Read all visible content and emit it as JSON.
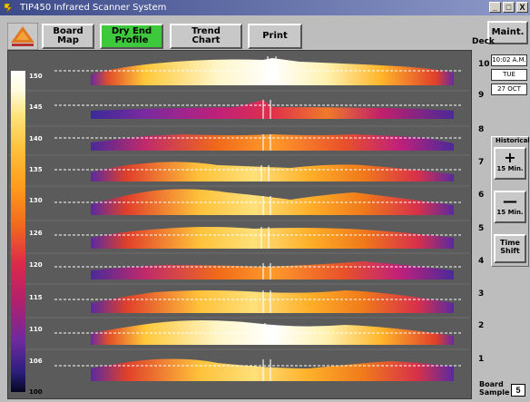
{
  "window": {
    "title": "TIP450 Infrared Scanner System",
    "controls": [
      "_",
      "□",
      "X"
    ]
  },
  "toolbar": {
    "board_map": "Board Map",
    "dry_end_profile": [
      "Dry End",
      "Profile"
    ],
    "trend_chart": [
      "Trend",
      "Chart"
    ],
    "print": "Print",
    "maint": "Maint."
  },
  "deck_header": "Deck",
  "colorbar_ticks": [
    "150",
    "145",
    "140",
    "135",
    "130",
    "126",
    "120",
    "115",
    "110",
    "106",
    "100"
  ],
  "decks": [
    "10",
    "9",
    "8",
    "7",
    "6",
    "5",
    "4",
    "3",
    "2",
    "1"
  ],
  "status": {
    "time": "10:02 A.M.",
    "day": "TUE",
    "date": "27 OCT"
  },
  "historical": {
    "title": "Historical",
    "forward": {
      "symbol": "+",
      "label": "15 Min."
    },
    "back": {
      "symbol": "—",
      "label": "15 Min."
    },
    "time_shift": [
      "Time",
      "Shift"
    ]
  },
  "board_sample": {
    "label": [
      "Board",
      "Sample"
    ],
    "value": "5"
  },
  "colors": {
    "accent_green": "#3ec93c",
    "panel_bg": "#5b5b5b",
    "window_bg": "#bdbdbd"
  }
}
